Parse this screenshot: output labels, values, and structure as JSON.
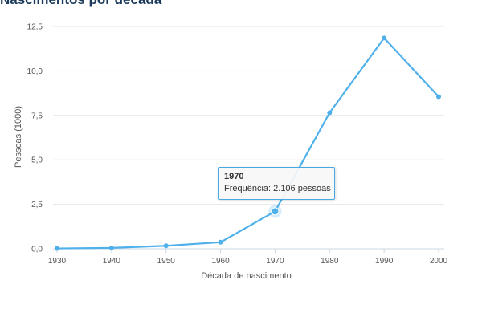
{
  "chart_data": {
    "type": "line",
    "title": "Nascimentos por década",
    "xlabel": "Década de nascimento",
    "ylabel": "Pessoas (1000)",
    "x": [
      "1930",
      "1940",
      "1950",
      "1960",
      "1970",
      "1980",
      "1990",
      "2000"
    ],
    "series": [
      {
        "values": [
          0.02,
          0.05,
          0.17,
          0.37,
          2.106,
          7.65,
          11.85,
          8.55
        ]
      }
    ],
    "ylim": [
      0,
      12.5
    ],
    "y_ticks": [
      "0,0",
      "2,5",
      "5,0",
      "7,5",
      "10,0",
      "12,5"
    ],
    "grid": true,
    "color": "#4fb0ea"
  },
  "tooltip": {
    "title": "1970",
    "body": "Frequência: 2.106 pessoas",
    "point_index": 4
  }
}
